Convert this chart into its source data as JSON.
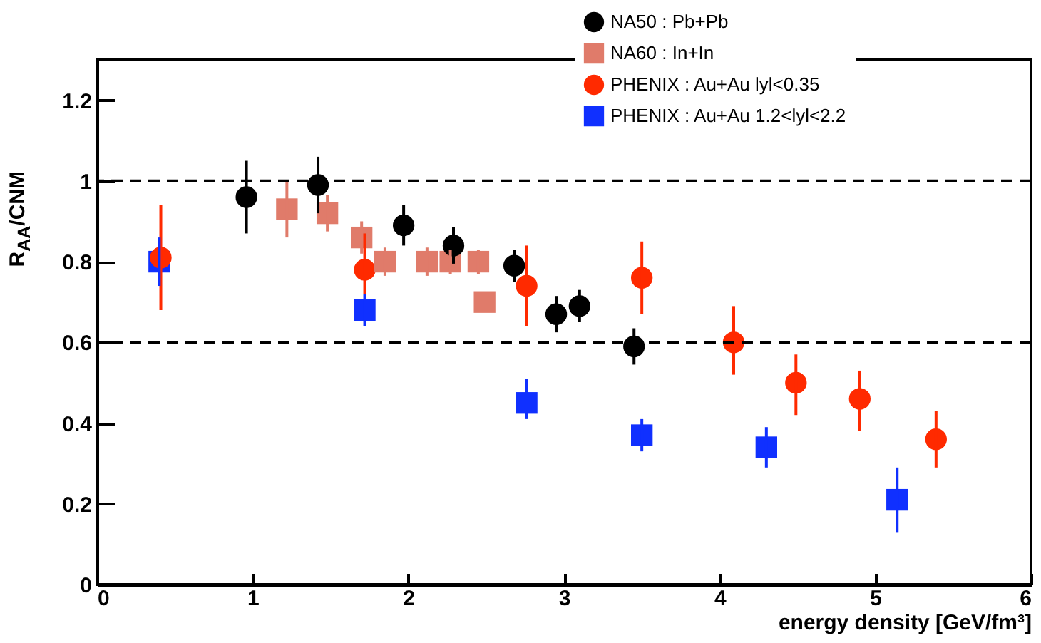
{
  "chart_data": {
    "type": "scatter",
    "xlabel": "energy density [GeV/fm³]",
    "ylabel": "R$_{AA}$/CNM",
    "xlim": [
      0,
      6
    ],
    "xticks": [
      0,
      1,
      2,
      3,
      4,
      5,
      6
    ],
    "ylim": [
      0,
      1.3
    ],
    "yticks": [
      0,
      0.2,
      0.4,
      0.6,
      0.8,
      1,
      1.2
    ],
    "grid": false,
    "legend": "top right",
    "ref_lines": [
      {
        "axis": "y",
        "value": 1,
        "color": "#000000",
        "line_style": "dashed"
      },
      {
        "axis": "y",
        "value": 0.6,
        "color": "#000000",
        "line_style": "dashed"
      }
    ],
    "series": [
      {
        "name": "NA50 : Pb+Pb",
        "color": "#000000",
        "marker": "circle",
        "x": [
          0.96,
          1.42,
          1.97,
          2.29,
          2.68,
          2.95,
          3.1,
          3.45
        ],
        "values": [
          0.96,
          0.99,
          0.89,
          0.84,
          0.79,
          0.67,
          0.69,
          0.59
        ],
        "errors": [
          0.09,
          0.07,
          0.05,
          0.045,
          0.04,
          0.045,
          0.04,
          0.045
        ]
      },
      {
        "name": "NA60 : In+In",
        "color": "#e07b6a",
        "marker": "square",
        "x": [
          1.22,
          1.48,
          1.7,
          1.85,
          2.12,
          2.27,
          2.45,
          2.49
        ],
        "values": [
          0.93,
          0.92,
          0.86,
          0.8,
          0.8,
          0.8,
          0.8,
          0.7
        ],
        "errors": [
          0.07,
          0.045,
          0.04,
          0.035,
          0.035,
          0.03,
          0.03,
          0.02
        ]
      },
      {
        "name": "PHENIX : Au+Au lyl<0.35",
        "color": "#ff2a00",
        "marker": "circle",
        "x": [
          0.41,
          1.72,
          2.76,
          3.5,
          4.09,
          4.49,
          4.9,
          5.39
        ],
        "values": [
          0.81,
          0.78,
          0.74,
          0.76,
          0.6,
          0.5,
          0.46,
          0.36
        ],
        "errors": [
          [
            0.68,
            0.94
          ],
          [
            0.72,
            0.87
          ],
          [
            0.64,
            0.84
          ],
          [
            0.67,
            0.85
          ],
          [
            0.52,
            0.69
          ],
          [
            0.42,
            0.57
          ],
          [
            0.38,
            0.53
          ],
          [
            0.29,
            0.43
          ]
        ]
      },
      {
        "name": "PHENIX : Au+Au 1.2<lyl<2.2",
        "color": "#1030ff",
        "marker": "square",
        "x": [
          0.4,
          1.72,
          2.76,
          3.5,
          4.3,
          5.14
        ],
        "values": [
          0.8,
          0.68,
          0.45,
          0.37,
          0.34,
          0.21
        ],
        "errors": [
          [
            0.74,
            0.86
          ],
          [
            0.64,
            0.72
          ],
          [
            0.41,
            0.51
          ],
          [
            0.33,
            0.41
          ],
          [
            0.29,
            0.39
          ],
          [
            0.13,
            0.29
          ]
        ]
      }
    ]
  }
}
